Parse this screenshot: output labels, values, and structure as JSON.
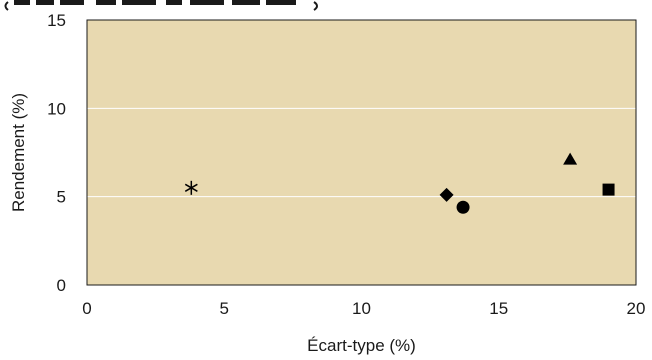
{
  "chart_data": {
    "type": "scatter",
    "title": "",
    "xlabel": "Écart-type (%)",
    "ylabel": "Rendement (%)",
    "xlim": [
      0,
      20
    ],
    "ylim": [
      0,
      15
    ],
    "xticks": [
      "0",
      "5",
      "10",
      "15",
      "20"
    ],
    "yticks": [
      "0",
      "5",
      "10",
      "15"
    ],
    "grid": "horizontal",
    "colors": {
      "plot_background": "#e8d9b0",
      "gridline": "#ffffff",
      "marker": "#000000"
    },
    "points": [
      {
        "x": 3.8,
        "y": 5.5,
        "marker": "asterisk"
      },
      {
        "x": 13.1,
        "y": 5.1,
        "marker": "diamond"
      },
      {
        "x": 13.7,
        "y": 4.4,
        "marker": "circle"
      },
      {
        "x": 17.6,
        "y": 7.1,
        "marker": "triangle"
      },
      {
        "x": 19.0,
        "y": 5.4,
        "marker": "square"
      }
    ]
  }
}
